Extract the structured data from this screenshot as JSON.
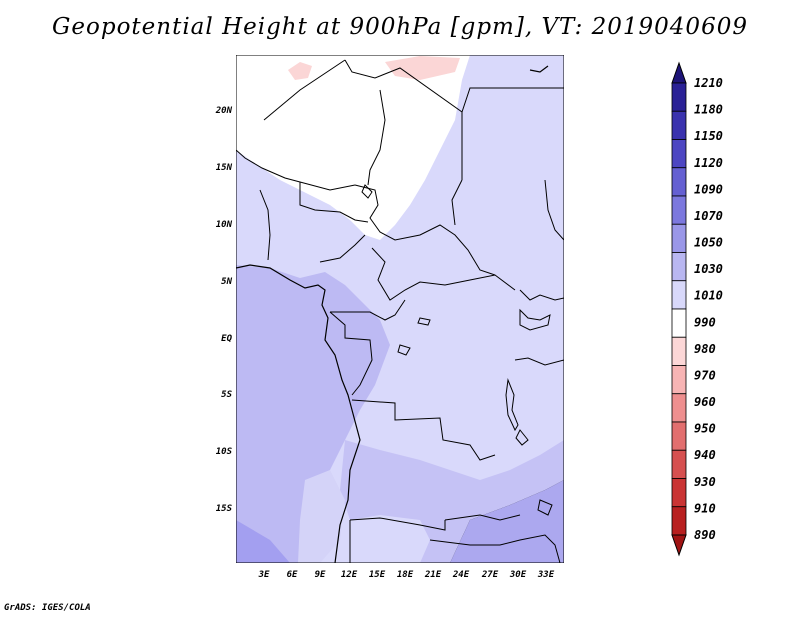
{
  "title": "Geopotential Height at 900hPa [gpm], VT: 2019040609",
  "credit": "GrADS: IGES/COLA",
  "map": {
    "lat_labels": [
      "20N",
      "15N",
      "10N",
      "5N",
      "EQ",
      "5S",
      "10S",
      "15S"
    ],
    "lon_labels": [
      "3E",
      "6E",
      "9E",
      "12E",
      "15E",
      "18E",
      "21E",
      "24E",
      "27E",
      "30E",
      "33E"
    ]
  },
  "colorbar": {
    "levels": [
      "1210",
      "1180",
      "1150",
      "1120",
      "1090",
      "1070",
      "1050",
      "1030",
      "1010",
      "990",
      "980",
      "970",
      "960",
      "950",
      "940",
      "930",
      "910",
      "890"
    ],
    "colors": [
      "#1e1478",
      "#2a2196",
      "#3a32ae",
      "#4d46c2",
      "#6560d2",
      "#7c78de",
      "#9a97e8",
      "#b9b7f1",
      "#d8d8fa",
      "#ffffff",
      "#fcd7d7",
      "#f7b4b4",
      "#ee8f8f",
      "#e26f6f",
      "#d65050",
      "#ca3434",
      "#b82020",
      "#a01414"
    ]
  }
}
